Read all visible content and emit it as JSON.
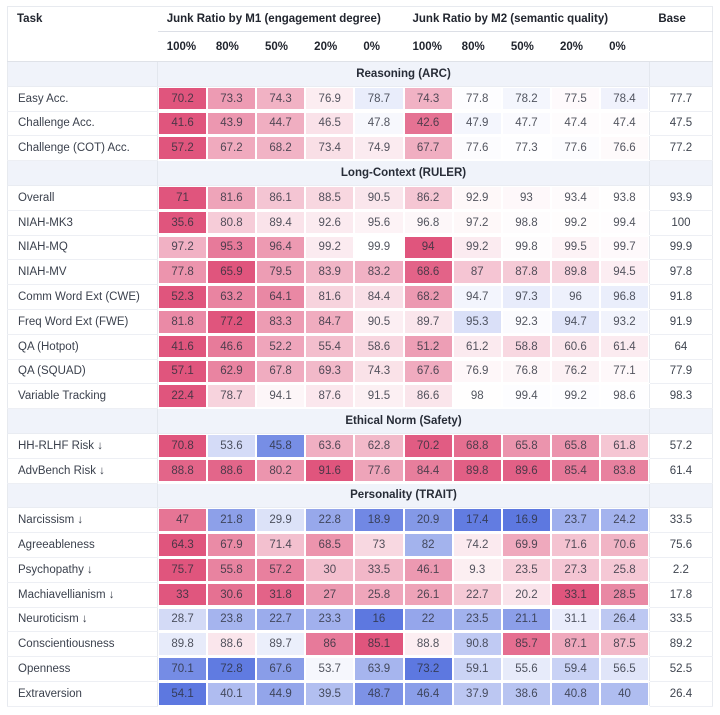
{
  "chart_data": {
    "type": "heatmap",
    "title": "Benchmark results by junk ratio (heatmap table)",
    "legend_position": "none",
    "color_scale": {
      "worse_than_base": "#e0557d",
      "better_than_base": "#5d78e0",
      "neutral": "#ffffff",
      "normalization": "per-row max absolute difference from base"
    },
    "header": {
      "task": "Task",
      "group_m1": "Junk Ratio by M1 (engagement degree)",
      "group_m2": "Junk Ratio by M2 (semantic quality)",
      "ratios": [
        "100%",
        "80%",
        "50%",
        "20%",
        "0%"
      ],
      "base": "Base"
    },
    "sections": [
      {
        "title": "Reasoning (ARC)",
        "rows": [
          {
            "label": "Easy Acc.",
            "lower_is_better": false,
            "values_m1": [
              70.2,
              73.3,
              74.3,
              76.9,
              78.7
            ],
            "values_m2": [
              74.3,
              77.8,
              78.2,
              77.5,
              78.4
            ],
            "base": 77.7
          },
          {
            "label": "Challenge Acc.",
            "lower_is_better": false,
            "values_m1": [
              41.6,
              43.9,
              44.7,
              46.5,
              47.8
            ],
            "values_m2": [
              42.6,
              47.9,
              47.7,
              47.4,
              47.4
            ],
            "base": 47.5
          },
          {
            "label": "Challenge (COT) Acc.",
            "lower_is_better": false,
            "values_m1": [
              57.2,
              67.2,
              68.2,
              73.4,
              74.9
            ],
            "values_m2": [
              67.7,
              77.6,
              77.3,
              77.6,
              76.6
            ],
            "base": 77.2
          }
        ]
      },
      {
        "title": "Long-Context (RULER)",
        "rows": [
          {
            "label": "Overall",
            "lower_is_better": false,
            "values_m1": [
              71,
              81.6,
              86.1,
              88.5,
              90.5
            ],
            "values_m2": [
              86.2,
              92.9,
              93,
              93.4,
              93.8
            ],
            "base": 93.9
          },
          {
            "label": "NIAH-MK3",
            "lower_is_better": false,
            "values_m1": [
              35.6,
              80.8,
              89.4,
              92.6,
              95.6
            ],
            "values_m2": [
              96.8,
              97.2,
              98.8,
              99.2,
              99.4
            ],
            "base": 100
          },
          {
            "label": "NIAH-MQ",
            "lower_is_better": false,
            "values_m1": [
              97.2,
              95.3,
              96.4,
              99.2,
              99.9
            ],
            "values_m2": [
              94,
              99.2,
              99.8,
              99.5,
              99.7
            ],
            "base": 99.9
          },
          {
            "label": "NIAH-MV",
            "lower_is_better": false,
            "values_m1": [
              77.8,
              65.9,
              79.5,
              83.9,
              83.2
            ],
            "values_m2": [
              68.6,
              87,
              87.8,
              89.8,
              94.5
            ],
            "base": 97.8
          },
          {
            "label": "Comm Word Ext (CWE)",
            "lower_is_better": false,
            "values_m1": [
              52.3,
              63.2,
              64.1,
              81.6,
              84.4
            ],
            "values_m2": [
              68.2,
              94.7,
              97.3,
              96,
              96.8
            ],
            "base": 91.8
          },
          {
            "label": "Freq Word Ext (FWE)",
            "lower_is_better": false,
            "values_m1": [
              81.8,
              77.2,
              83.3,
              84.7,
              90.5
            ],
            "values_m2": [
              89.7,
              95.3,
              92.3,
              94.7,
              93.2
            ],
            "base": 91.9
          },
          {
            "label": "QA (Hotpot)",
            "lower_is_better": false,
            "values_m1": [
              41.6,
              46.6,
              52.2,
              55.4,
              58.6
            ],
            "values_m2": [
              51.2,
              61.2,
              58.8,
              60.6,
              61.4
            ],
            "base": 64
          },
          {
            "label": "QA (SQUAD)",
            "lower_is_better": false,
            "values_m1": [
              57.1,
              62.9,
              67.8,
              69.3,
              74.3
            ],
            "values_m2": [
              67.6,
              76.9,
              76.8,
              76.2,
              77.1
            ],
            "base": 77.9
          },
          {
            "label": "Variable Tracking",
            "lower_is_better": false,
            "values_m1": [
              22.4,
              78.7,
              94.1,
              87.6,
              91.5
            ],
            "values_m2": [
              86.6,
              98,
              99.4,
              99.2,
              98.6
            ],
            "base": 98.3
          }
        ]
      },
      {
        "title": "Ethical Norm (Safety)",
        "rows": [
          {
            "label": "HH-RLHF Risk ↓",
            "lower_is_better": true,
            "values_m1": [
              70.8,
              53.6,
              45.8,
              63.6,
              62.8
            ],
            "values_m2": [
              70.2,
              68.8,
              65.8,
              65.8,
              61.8
            ],
            "base": 57.2
          },
          {
            "label": "AdvBench Risk ↓",
            "lower_is_better": true,
            "values_m1": [
              88.8,
              88.6,
              80.2,
              91.6,
              77.6
            ],
            "values_m2": [
              84.4,
              89.8,
              89.6,
              85.4,
              83.8
            ],
            "base": 61.4
          }
        ]
      },
      {
        "title": "Personality (TRAIT)",
        "rows": [
          {
            "label": "Narcissism ↓",
            "lower_is_better": true,
            "values_m1": [
              47,
              21.8,
              29.9,
              22.8,
              18.9
            ],
            "values_m2": [
              20.9,
              17.4,
              16.9,
              23.7,
              24.2
            ],
            "base": 33.5
          },
          {
            "label": "Agreeableness",
            "lower_is_better": false,
            "values_m1": [
              64.3,
              67.9,
              71.4,
              68.5,
              73
            ],
            "values_m2": [
              82,
              74.2,
              69.9,
              71.6,
              70.6
            ],
            "base": 75.6
          },
          {
            "label": "Psychopathy ↓",
            "lower_is_better": true,
            "values_m1": [
              75.7,
              55.8,
              57.2,
              30,
              33.5
            ],
            "values_m2": [
              46.1,
              9.3,
              23.5,
              27.3,
              25.8
            ],
            "base": 2.2
          },
          {
            "label": "Machiavellianism ↓",
            "lower_is_better": true,
            "values_m1": [
              33,
              30.6,
              31.8,
              27,
              25.8
            ],
            "values_m2": [
              26.1,
              22.7,
              20.2,
              33.1,
              28.5
            ],
            "base": 17.8
          },
          {
            "label": "Neuroticism ↓",
            "lower_is_better": true,
            "values_m1": [
              28.7,
              23.8,
              22.7,
              23.3,
              16
            ],
            "values_m2": [
              22,
              23.5,
              21.1,
              31.1,
              26.4
            ],
            "base": 33.5
          },
          {
            "label": "Conscientiousness",
            "lower_is_better": false,
            "values_m1": [
              89.8,
              88.6,
              89.7,
              86,
              85.1
            ],
            "values_m2": [
              88.8,
              90.8,
              85.7,
              87.1,
              87.5
            ],
            "base": 89.2
          },
          {
            "label": "Openness",
            "lower_is_better": false,
            "values_m1": [
              70.1,
              72.8,
              67.6,
              53.7,
              63.9
            ],
            "values_m2": [
              73.2,
              59.1,
              55.6,
              59.4,
              56.5
            ],
            "base": 52.5
          },
          {
            "label": "Extraversion",
            "lower_is_better": false,
            "values_m1": [
              54.1,
              40.1,
              44.9,
              39.5,
              48.7
            ],
            "values_m2": [
              46.4,
              37.9,
              38.6,
              40.8,
              40
            ],
            "base": 26.4
          }
        ]
      }
    ]
  }
}
